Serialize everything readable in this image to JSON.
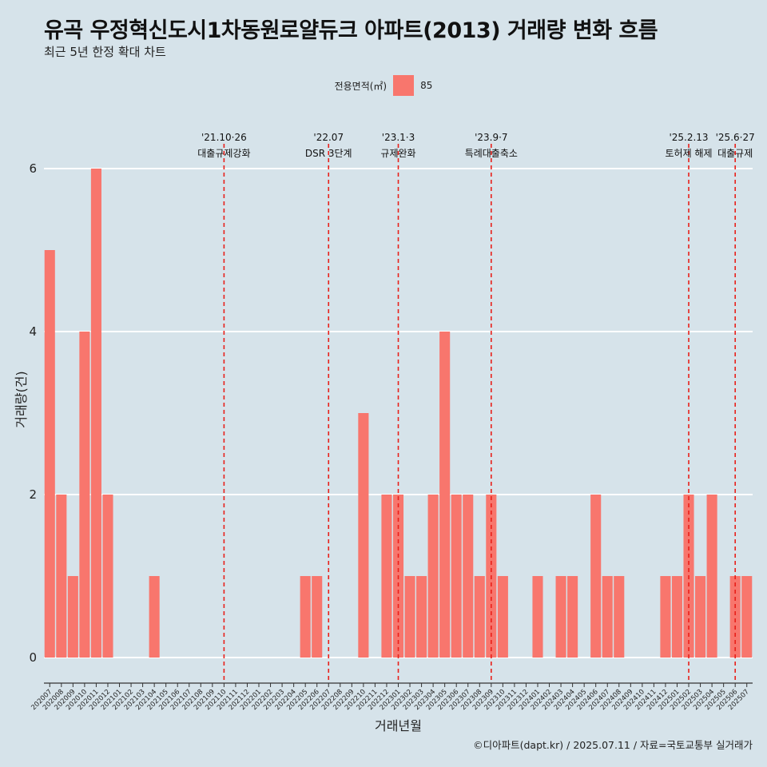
{
  "title": "유곡 우정혁신도시1차동원로얄듀크 아파트(2013) 거래량 변화 흐름",
  "subtitle": "최근 5년 한정 확대 차트",
  "legend": {
    "title": "전용면적(㎡)",
    "item": "85",
    "color": "#f8766d"
  },
  "caption": "©디아파트(dapt.kr) / 2025.07.11 / 자료=국토교통부 실거래가",
  "chart_data": {
    "type": "bar",
    "xlabel": "거래년월",
    "ylabel": "거래량(건)",
    "ylim": [
      0,
      6
    ],
    "yticks": [
      0,
      2,
      4,
      6
    ],
    "grid": true,
    "legend_position": "top",
    "categories": [
      "202007",
      "202008",
      "202009",
      "202010",
      "202011",
      "202012",
      "202101",
      "202102",
      "202103",
      "202104",
      "202105",
      "202106",
      "202107",
      "202108",
      "202109",
      "202110",
      "202111",
      "202112",
      "202201",
      "202202",
      "202203",
      "202204",
      "202205",
      "202206",
      "202207",
      "202208",
      "202209",
      "202210",
      "202211",
      "202212",
      "202301",
      "202302",
      "202303",
      "202304",
      "202305",
      "202306",
      "202307",
      "202308",
      "202309",
      "202310",
      "202311",
      "202312",
      "202401",
      "202402",
      "202403",
      "202404",
      "202405",
      "202406",
      "202407",
      "202408",
      "202409",
      "202410",
      "202411",
      "202412",
      "202501",
      "202502",
      "202503",
      "202504",
      "202505",
      "202506",
      "202507"
    ],
    "series": [
      {
        "name": "85",
        "color": "#f8766d",
        "values": [
          5,
          2,
          1,
          4,
          6,
          2,
          0,
          0,
          0,
          1,
          0,
          0,
          0,
          0,
          0,
          0,
          0,
          0,
          0,
          0,
          0,
          0,
          1,
          1,
          0,
          0,
          0,
          3,
          0,
          2,
          2,
          1,
          1,
          2,
          4,
          2,
          2,
          1,
          2,
          1,
          0,
          0,
          1,
          0,
          1,
          1,
          0,
          2,
          1,
          1,
          0,
          0,
          0,
          1,
          1,
          2,
          1,
          2,
          0,
          1,
          1
        ]
      }
    ],
    "events": [
      {
        "month": "202110",
        "date": "'21.10·26",
        "label": "대출규제강화"
      },
      {
        "month": "202207",
        "date": "'22.07",
        "label": "DSR 3단계"
      },
      {
        "month": "202301",
        "date": "'23.1·3",
        "label": "규제완화"
      },
      {
        "month": "202309",
        "date": "'23.9·7",
        "label": "특례대출축소"
      },
      {
        "month": "202502",
        "date": "'25.2.13",
        "label": "토허제 해제"
      },
      {
        "month": "202506",
        "date": "'25.6·27",
        "label": "대출규제"
      }
    ]
  }
}
